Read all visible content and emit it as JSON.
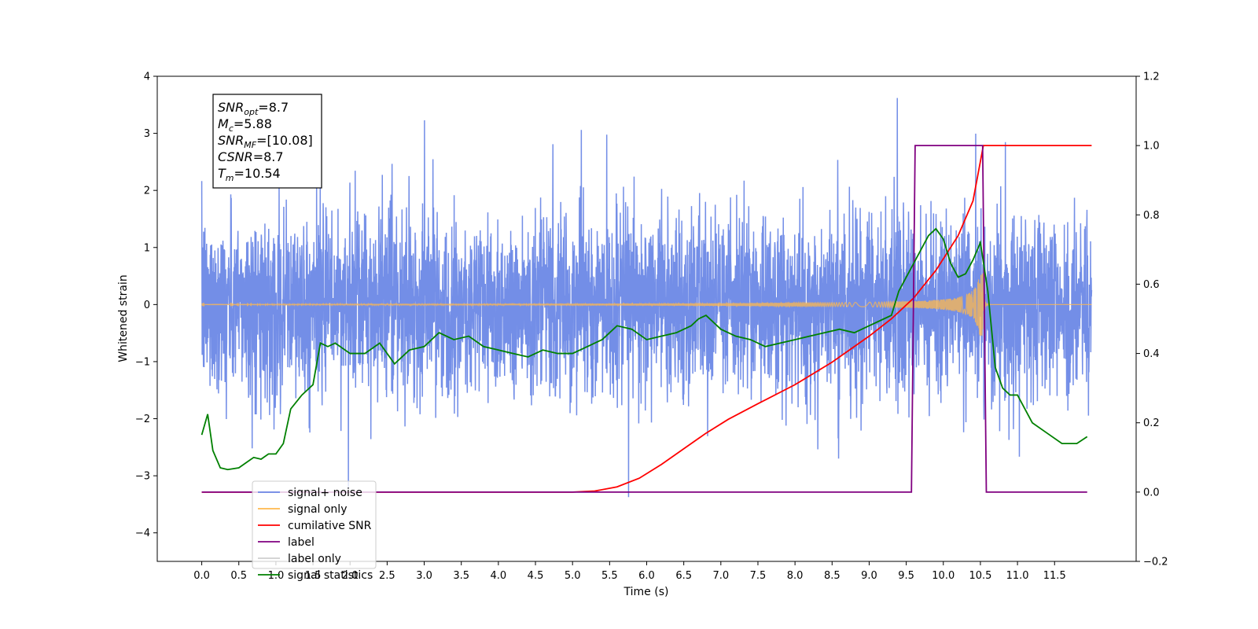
{
  "chart_data": {
    "type": "line",
    "xlabel": "Time (s)",
    "ylabel": "Whitened strain",
    "xlim": [
      -0.6,
      12.6
    ],
    "ylim": [
      -4.5,
      4.0
    ],
    "y2lim": [
      -0.2,
      1.2
    ],
    "x_ticks": [
      0.0,
      0.5,
      1.0,
      1.5,
      2.0,
      2.5,
      3.0,
      3.5,
      4.0,
      4.5,
      5.0,
      5.5,
      6.0,
      6.5,
      7.0,
      7.5,
      8.0,
      8.5,
      9.0,
      9.5,
      10.0,
      10.5,
      11.0,
      11.5
    ],
    "x_tick_labels": [
      "0.0",
      "0.5",
      "1.0",
      "1.5",
      "2.0",
      "2.5",
      "3.0",
      "3.5",
      "4.0",
      "4.5",
      "5.0",
      "5.5",
      "6.0",
      "6.5",
      "7.0",
      "7.5",
      "8.0",
      "8.5",
      "9.0",
      "9.5",
      "10.0",
      "10.5",
      "11.0",
      "11.5"
    ],
    "y_ticks": [
      -4,
      -3,
      -2,
      -1,
      0,
      1,
      2,
      3,
      4
    ],
    "y_tick_labels": [
      "−4",
      "−3",
      "−2",
      "−1",
      "0",
      "1",
      "2",
      "3",
      "4"
    ],
    "y2_ticks": [
      -0.2,
      0.0,
      0.2,
      0.4,
      0.6,
      0.8,
      1.0,
      1.2
    ],
    "y2_tick_labels": [
      "−0.2",
      "0.0",
      "0.2",
      "0.4",
      "0.6",
      "0.8",
      "1.0",
      "1.2"
    ],
    "grid": false,
    "legend_position": "lower-left",
    "annotation": {
      "lines": [
        {
          "base": "SNR",
          "sub": "opt",
          "rest": "=8.7"
        },
        {
          "base": "M",
          "sub": "c",
          "rest": "=5.88"
        },
        {
          "base": "SNR",
          "sub": "MF",
          "rest": "=[10.08]"
        },
        {
          "base": "CSNR",
          "sub": "",
          "rest": "=8.7"
        },
        {
          "base": "T",
          "sub": "m",
          "rest": "=10.54"
        }
      ]
    },
    "series": [
      {
        "name": "signal+ noise",
        "color": "#6b88e6",
        "axis": "left",
        "kind": "noise",
        "x_range": [
          0.0,
          12.0
        ],
        "sigma": 1.0,
        "min": -4.1,
        "max": 3.62
      },
      {
        "name": "signal only",
        "color": "#ffb84d",
        "axis": "left",
        "kind": "chirp",
        "x_start": 0.0,
        "merger_time": 10.54,
        "x_end": 12.0,
        "peak_amplitude": 0.55
      },
      {
        "name": "cumilative SNR",
        "color": "#ff0000",
        "axis": "right",
        "x": [
          0.0,
          5.0,
          5.3,
          5.6,
          5.9,
          6.2,
          6.5,
          6.8,
          7.1,
          7.5,
          8.0,
          8.5,
          9.0,
          9.3,
          9.6,
          9.9,
          10.2,
          10.4,
          10.54,
          10.6,
          12.0
        ],
        "y": [
          0.0,
          0.0,
          0.003,
          0.015,
          0.04,
          0.08,
          0.125,
          0.17,
          0.21,
          0.255,
          0.31,
          0.375,
          0.45,
          0.5,
          0.56,
          0.64,
          0.74,
          0.84,
          1.0,
          1.0,
          1.0
        ]
      },
      {
        "name": "label",
        "color": "#800080",
        "axis": "right",
        "x": [
          0.0,
          9.57,
          9.62,
          10.53,
          10.58,
          11.94
        ],
        "y": [
          0.0,
          0.0,
          1.0,
          1.0,
          0.0,
          0.0
        ]
      },
      {
        "name": "label only",
        "color": "#cfcfcf",
        "axis": "right",
        "kind": "hidden",
        "x": [],
        "y": []
      },
      {
        "name": "signal statistics",
        "color": "#008000",
        "axis": "right",
        "x": [
          0.0,
          0.08,
          0.15,
          0.25,
          0.35,
          0.5,
          0.6,
          0.7,
          0.8,
          0.9,
          1.0,
          1.1,
          1.2,
          1.35,
          1.5,
          1.6,
          1.7,
          1.8,
          2.0,
          2.2,
          2.4,
          2.6,
          2.8,
          3.0,
          3.2,
          3.4,
          3.6,
          3.8,
          4.0,
          4.2,
          4.4,
          4.6,
          4.8,
          5.0,
          5.2,
          5.4,
          5.6,
          5.8,
          6.0,
          6.2,
          6.4,
          6.6,
          6.7,
          6.8,
          7.0,
          7.2,
          7.4,
          7.6,
          7.8,
          8.0,
          8.2,
          8.4,
          8.6,
          8.8,
          9.0,
          9.2,
          9.3,
          9.4,
          9.5,
          9.6,
          9.7,
          9.8,
          9.9,
          10.0,
          10.1,
          10.2,
          10.3,
          10.4,
          10.5,
          10.6,
          10.7,
          10.8,
          10.9,
          11.0,
          11.2,
          11.4,
          11.6,
          11.8,
          11.94
        ],
        "y": [
          0.165,
          0.225,
          0.12,
          0.07,
          0.065,
          0.07,
          0.085,
          0.1,
          0.095,
          0.11,
          0.11,
          0.14,
          0.24,
          0.28,
          0.31,
          0.43,
          0.42,
          0.43,
          0.4,
          0.4,
          0.43,
          0.37,
          0.41,
          0.42,
          0.46,
          0.44,
          0.45,
          0.42,
          0.41,
          0.4,
          0.39,
          0.41,
          0.4,
          0.4,
          0.42,
          0.44,
          0.48,
          0.47,
          0.44,
          0.45,
          0.46,
          0.48,
          0.5,
          0.51,
          0.47,
          0.45,
          0.44,
          0.42,
          0.43,
          0.44,
          0.45,
          0.46,
          0.47,
          0.46,
          0.48,
          0.5,
          0.51,
          0.58,
          0.62,
          0.66,
          0.7,
          0.74,
          0.76,
          0.73,
          0.66,
          0.62,
          0.63,
          0.67,
          0.72,
          0.58,
          0.36,
          0.3,
          0.28,
          0.28,
          0.2,
          0.17,
          0.14,
          0.14,
          0.16
        ]
      }
    ]
  }
}
